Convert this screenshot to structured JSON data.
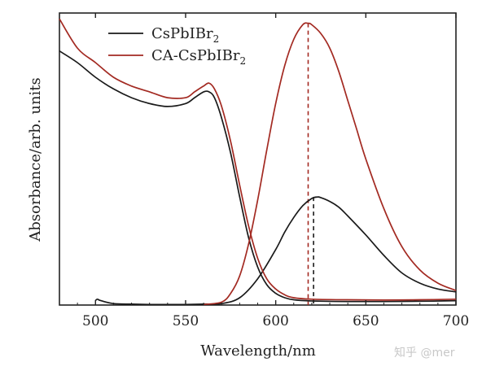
{
  "watermark": "知乎 @mer",
  "chart_data": {
    "type": "line",
    "xlabel": "Wavelength/nm",
    "ylabel": "Absorbance/arb. units",
    "xlim": [
      480,
      700
    ],
    "ylim": [
      0,
      1.0
    ],
    "xticks": [
      500,
      550,
      600,
      650,
      700
    ],
    "yticks_shown": false,
    "legend_position": "top-left",
    "series": [
      {
        "name": "CsPbIBr",
        "name_subscript": "2",
        "color": "#1a1a1a",
        "kind": "absorbance",
        "x": [
          480,
          490,
          500,
          510,
          520,
          530,
          540,
          550,
          555,
          560,
          563,
          566,
          570,
          575,
          580,
          585,
          590,
          595,
          600,
          605,
          610,
          620,
          640,
          660,
          680,
          700
        ],
        "y": [
          0.87,
          0.83,
          0.78,
          0.74,
          0.71,
          0.69,
          0.68,
          0.69,
          0.71,
          0.73,
          0.73,
          0.71,
          0.64,
          0.52,
          0.37,
          0.23,
          0.13,
          0.07,
          0.04,
          0.025,
          0.018,
          0.014,
          0.012,
          0.012,
          0.013,
          0.015
        ]
      },
      {
        "name": "CsPbIBr",
        "name_subscript": "2",
        "color": "#1a1a1a",
        "kind": "photoluminescence",
        "x": [
          500,
          501,
          503,
          510,
          520,
          530,
          540,
          550,
          560,
          570,
          580,
          590,
          600,
          605,
          610,
          615,
          620,
          623,
          625,
          630,
          635,
          640,
          650,
          660,
          670,
          680,
          690,
          700
        ],
        "y": [
          0.015,
          0.02,
          0.015,
          0.005,
          0.003,
          0.002,
          0.002,
          0.002,
          0.003,
          0.005,
          0.025,
          0.09,
          0.19,
          0.25,
          0.3,
          0.34,
          0.365,
          0.37,
          0.368,
          0.355,
          0.335,
          0.305,
          0.24,
          0.17,
          0.11,
          0.075,
          0.055,
          0.045
        ]
      },
      {
        "name": "CA-CsPbIBr",
        "name_subscript": "2",
        "color": "#a32a22",
        "kind": "absorbance",
        "x": [
          480,
          490,
          500,
          510,
          520,
          530,
          540,
          550,
          555,
          560,
          563,
          566,
          570,
          575,
          580,
          585,
          590,
          595,
          600,
          605,
          610,
          620,
          640,
          660,
          680,
          700
        ],
        "y": [
          0.98,
          0.88,
          0.83,
          0.78,
          0.75,
          0.73,
          0.71,
          0.71,
          0.73,
          0.75,
          0.76,
          0.74,
          0.68,
          0.56,
          0.41,
          0.27,
          0.16,
          0.09,
          0.055,
          0.035,
          0.025,
          0.02,
          0.018,
          0.017,
          0.018,
          0.02
        ]
      },
      {
        "name": "CA-CsPbIBr",
        "name_subscript": "2",
        "color": "#a32a22",
        "kind": "photoluminescence",
        "x": [
          560,
          570,
          575,
          580,
          585,
          590,
          595,
          600,
          605,
          610,
          615,
          618,
          620,
          625,
          630,
          635,
          640,
          645,
          650,
          660,
          670,
          680,
          690,
          700
        ],
        "y": [
          0.002,
          0.01,
          0.04,
          0.1,
          0.21,
          0.36,
          0.53,
          0.69,
          0.82,
          0.91,
          0.96,
          0.965,
          0.96,
          0.93,
          0.88,
          0.8,
          0.7,
          0.6,
          0.5,
          0.33,
          0.2,
          0.12,
          0.075,
          0.05
        ]
      }
    ],
    "reference_lines": [
      {
        "x": 618,
        "y_top": 0.965,
        "color": "#a32a22",
        "style": "dashed"
      },
      {
        "x": 621,
        "y_top": 0.37,
        "color": "#1a1a1a",
        "style": "dashed"
      }
    ]
  }
}
